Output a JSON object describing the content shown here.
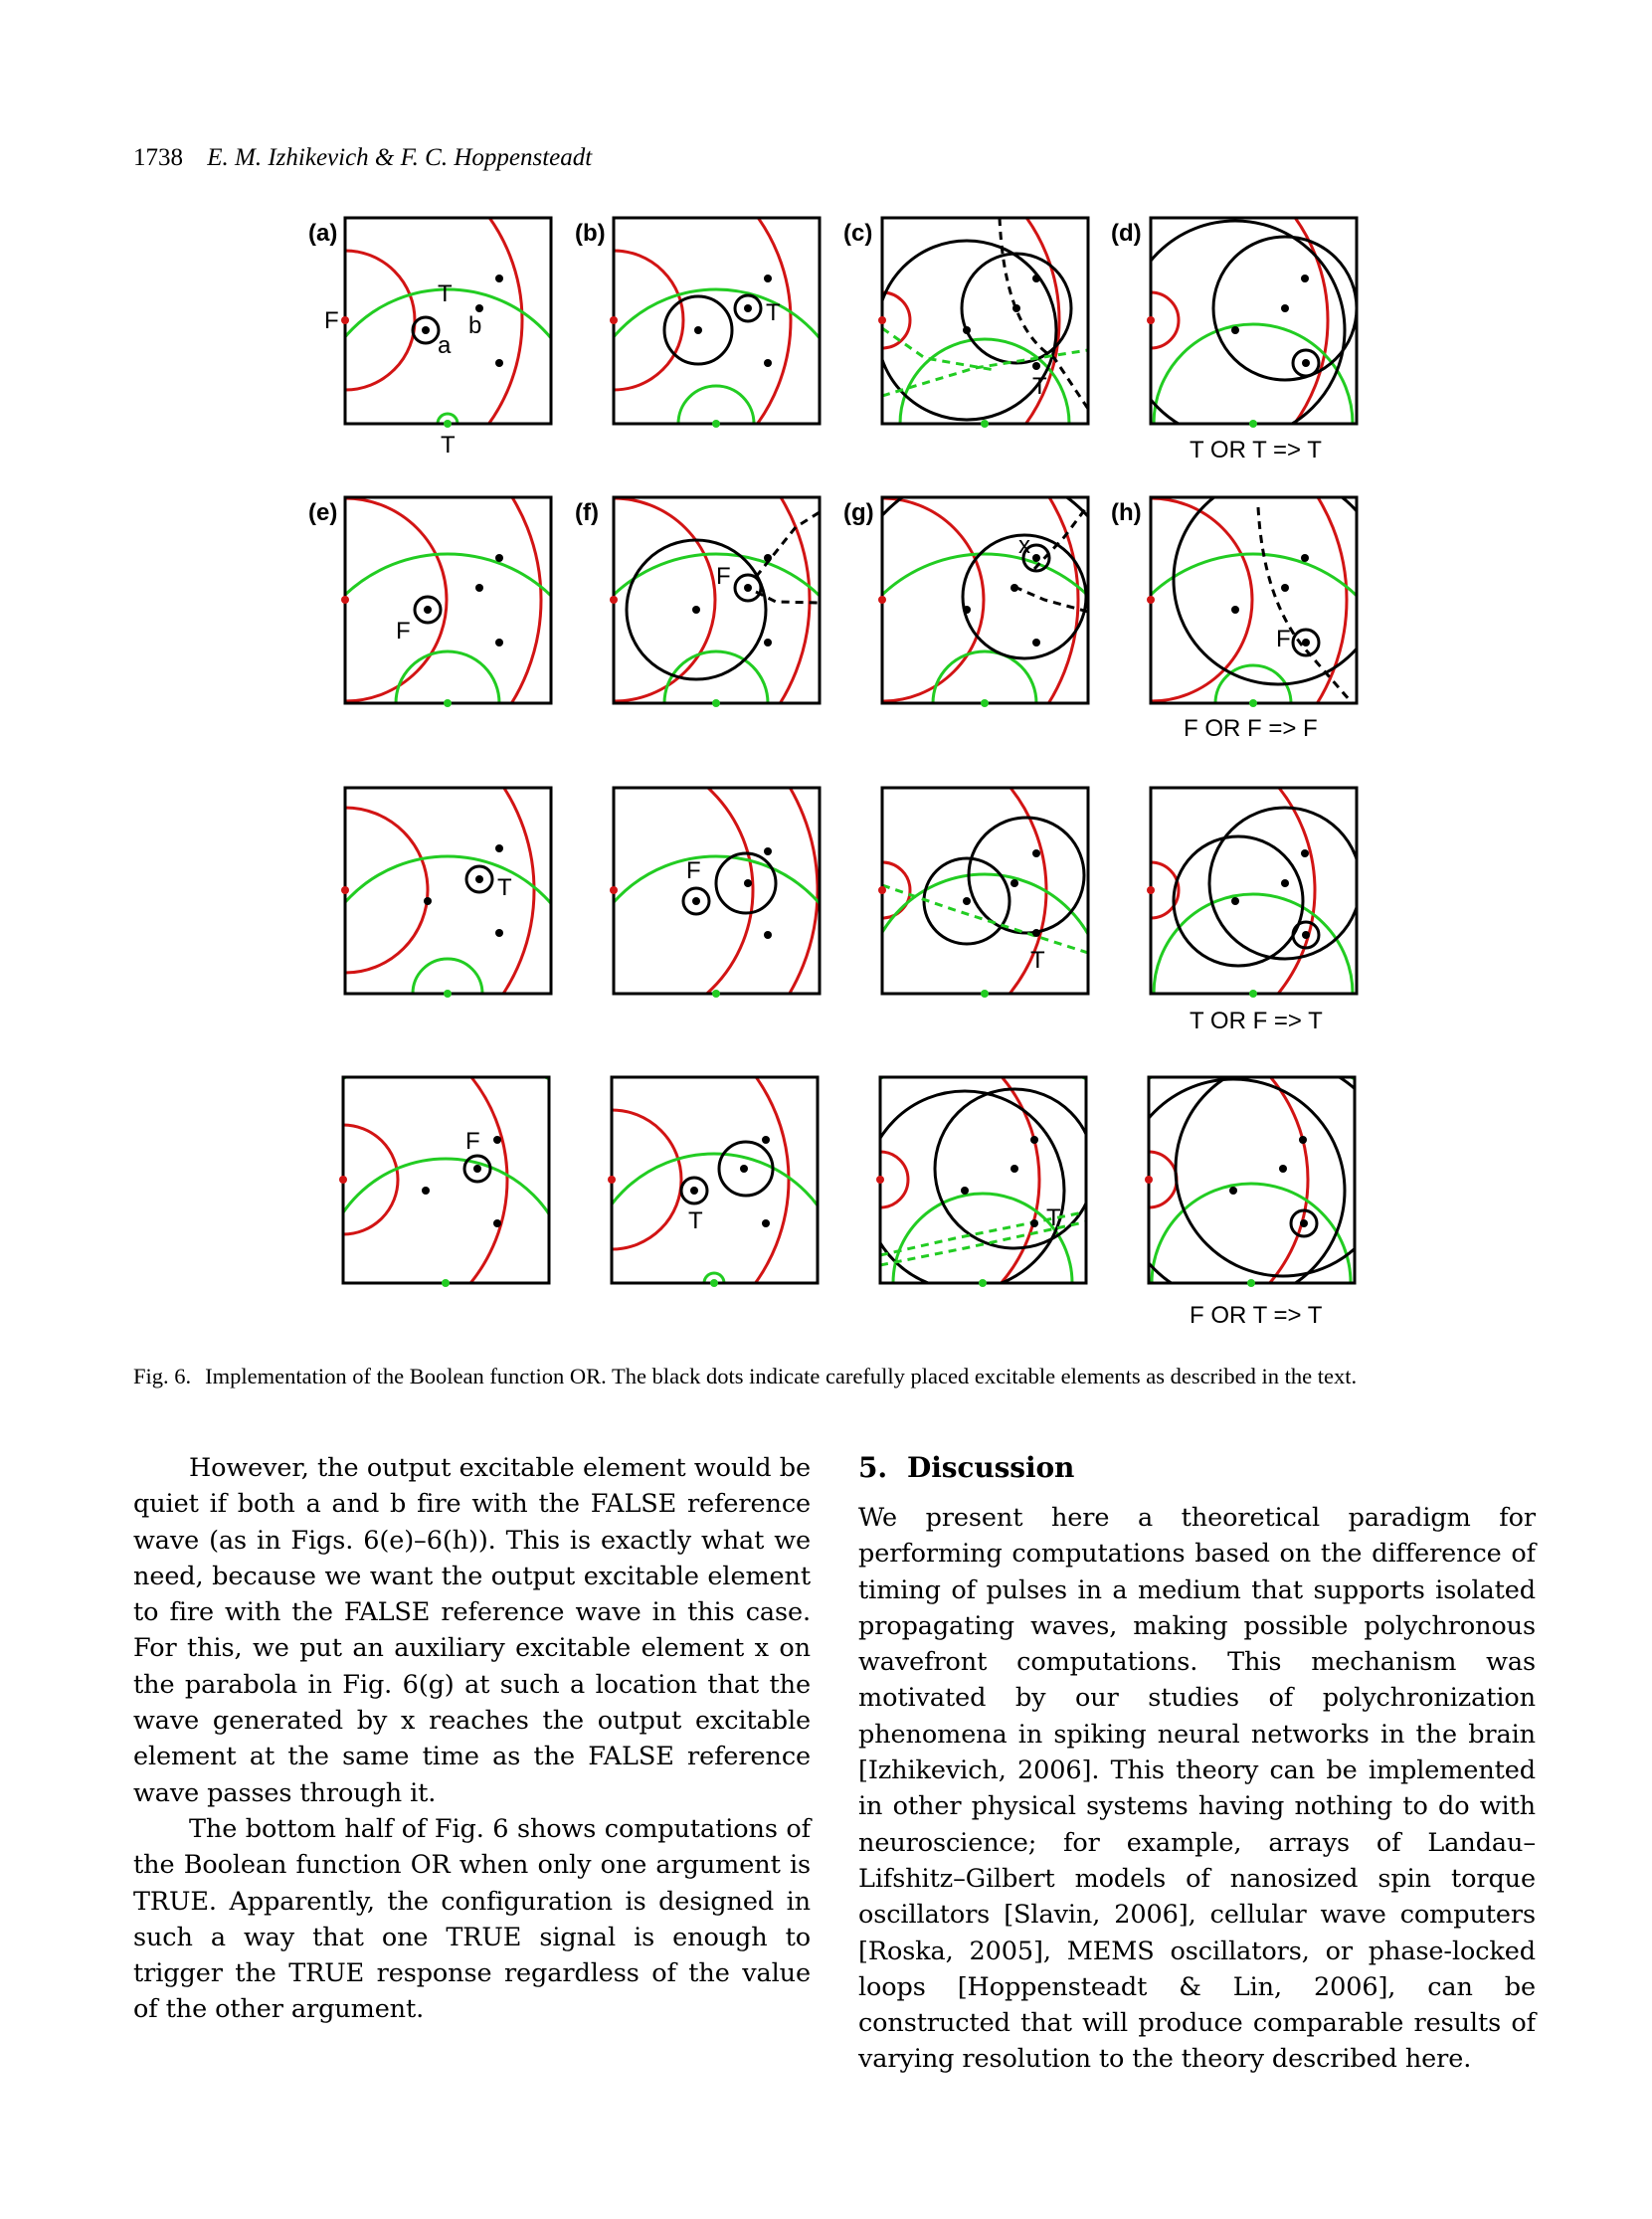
{
  "header": {
    "page_number": "1738",
    "authors": "E. M. Izhikevich & F. C. Hoppensteadt"
  },
  "figure": {
    "panel_labels": [
      "(a)",
      "(b)",
      "(c)",
      "(d)",
      "(e)",
      "(f)",
      "(g)",
      "(h)"
    ],
    "row_captions": [
      "T OR T => T",
      "F OR F => F",
      "T OR F => T",
      "F OR T => T"
    ],
    "annotations": {
      "a_T_top": "T",
      "a_F_left": "F",
      "a_a": "a",
      "a_b": "b",
      "a_T_bottom": "T",
      "b_T": "T",
      "c_T": "T",
      "e_F": "F",
      "f_F": "F",
      "g_x": "x",
      "h_F": "F",
      "r3c1_T": "T",
      "r3c2_F": "F",
      "r3c3_T": "T",
      "r4c1_F": "F",
      "r4c2_T": "T",
      "r4c3_T": "T"
    },
    "colors": {
      "red": "#d21414",
      "green": "#22cc22",
      "black": "#000000"
    }
  },
  "caption": {
    "label": "Fig. 6.",
    "text": "Implementation of the Boolean function OR. The black dots indicate carefully placed excitable elements as described in the text."
  },
  "left_column": {
    "p1": "However, the output excitable element would be quiet if both a and b fire with the FALSE reference wave (as in Figs. 6(e)–6(h)). This is exactly what we need, because we want the output excitable element to fire with the FALSE reference wave in this case. For this, we put an auxiliary excitable element x on the parabola in Fig. 6(g) at such a location that the wave generated by x reaches the output excitable element at the same time as the FALSE reference wave passes through it.",
    "p2": "The bottom half of Fig. 6 shows computations of the Boolean function OR when only one argument is TRUE. Apparently, the configuration is designed in such a way that one TRUE signal is enough to trigger the TRUE response regardless of the value of the other argument."
  },
  "right_column": {
    "section_number": "5.",
    "section_title": "Discussion",
    "p1": "We present here a theoretical paradigm for performing computations based on the difference of timing of pulses in a medium that supports isolated propagating waves, making possible polychronous wavefront computations. This mechanism was motivated by our studies of polychronization phenomena in spiking neural networks in the brain [Izhikevich, 2006]. This theory can be implemented in other physical systems having nothing to do with neuroscience; for example, arrays of Landau–Lifshitz–Gilbert models of nanosized spin torque oscillators [Slavin, 2006], cellular wave computers [Roska, 2005], MEMS oscillators, or phase-locked loops [Hoppensteadt & Lin, 2006], can be constructed that will produce comparable results of varying resolution to the theory described here."
  }
}
